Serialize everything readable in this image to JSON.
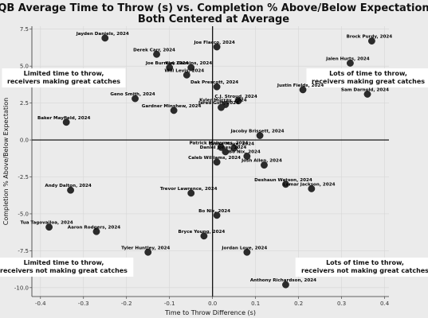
{
  "chart_data": {
    "type": "scatter",
    "title": "QB Average Time to Throw (s) vs. Completion % Above/Below Expectation",
    "subtitle": "Both Centered at Average",
    "xlabel": "Time to Throw Difference (s)",
    "ylabel": "Completion % Above/Below Expectation",
    "xlim": [
      -0.42,
      0.41
    ],
    "ylim": [
      -10.6,
      7.7
    ],
    "x_ticks": [
      -0.4,
      -0.3,
      -0.2,
      -0.1,
      0.0,
      0.1,
      0.2,
      0.3,
      0.4
    ],
    "y_ticks": [
      -10.0,
      -7.5,
      -5.0,
      -2.5,
      0.0,
      2.5,
      5.0,
      7.5
    ],
    "grid": true,
    "reference_lines": {
      "x": 0,
      "y": 0
    },
    "quadrant_labels": [
      {
        "lines": [
          "Limited time to throw,",
          "receivers making great catches"
        ],
        "position": "top-left"
      },
      {
        "lines": [
          "Lots of time to throw,",
          "receivers making great catches"
        ],
        "position": "top-right"
      },
      {
        "lines": [
          "Limited time to throw,",
          "receivers not making great catches"
        ],
        "position": "bottom-left"
      },
      {
        "lines": [
          "Lots of time to throw,",
          "receivers not making great catches"
        ],
        "position": "bottom-right"
      }
    ],
    "points": [
      {
        "label": "Jayden Daniels, 2024",
        "x": -0.25,
        "y": 6.9
      },
      {
        "label": "Joe Flacco, 2024",
        "x": 0.01,
        "y": 6.3
      },
      {
        "label": "Brock Purdy, 2024",
        "x": 0.37,
        "y": 6.7
      },
      {
        "label": "Derek Carr, 2024",
        "x": -0.13,
        "y": 5.8
      },
      {
        "label": "Jalen Hurts, 2024",
        "x": 0.32,
        "y": 5.2
      },
      {
        "label": "Joe Burrow, 2024",
        "x": -0.1,
        "y": 4.9
      },
      {
        "label": "Kirk Cousins, 2024",
        "x": -0.05,
        "y": 4.9
      },
      {
        "label": "Will Levis, 2024",
        "x": -0.06,
        "y": 4.4
      },
      {
        "label": "Dak Prescott, 2024",
        "x": 0.01,
        "y": 3.6
      },
      {
        "label": "Justin Fields, 2024",
        "x": 0.21,
        "y": 3.4
      },
      {
        "label": "Sam Darnold, 2024",
        "x": 0.36,
        "y": 3.1
      },
      {
        "label": "Geno Smith, 2024",
        "x": -0.18,
        "y": 2.8
      },
      {
        "label": "C.J. Stroud, 2024",
        "x": 0.06,
        "y": 2.65
      },
      {
        "label": "Kyler Murray, 2024",
        "x": 0.03,
        "y": 2.4
      },
      {
        "label": "Jared Goff, 2024",
        "x": 0.02,
        "y": 2.2
      },
      {
        "label": "Gardner Minshew, 2024",
        "x": -0.09,
        "y": 2.0
      },
      {
        "label": "Baker Mayfield, 2024",
        "x": -0.34,
        "y": 1.2
      },
      {
        "label": "Jacoby Brissett, 2024",
        "x": 0.11,
        "y": 0.3
      },
      {
        "label": "Patrick Mahomes, 2024",
        "x": 0.02,
        "y": -0.5
      },
      {
        "label": "Drake Maye, 2024",
        "x": 0.05,
        "y": -0.55
      },
      {
        "label": "Daniel Jones, 2024",
        "x": 0.03,
        "y": -0.8
      },
      {
        "label": "Bo Nix, 2024",
        "x": 0.08,
        "y": -1.1
      },
      {
        "label": "Caleb Williams, 2024",
        "x": 0.01,
        "y": -1.5
      },
      {
        "label": "Josh Allen, 2024",
        "x": 0.12,
        "y": -1.7
      },
      {
        "label": "Deshaun Watson, 2024",
        "x": 0.17,
        "y": -3.0
      },
      {
        "label": "Lamar Jackson, 2024",
        "x": 0.23,
        "y": -3.3
      },
      {
        "label": "Andy Dalton, 2024",
        "x": -0.33,
        "y": -3.4
      },
      {
        "label": "Trevor Lawrence, 2024",
        "x": -0.05,
        "y": -3.6
      },
      {
        "label": "Bo Nix, 2024",
        "x": 0.01,
        "y": -5.1
      },
      {
        "label": "Tua Tagovailoa, 2024",
        "x": -0.38,
        "y": -5.9
      },
      {
        "label": "Aaron Rodgers, 2024",
        "x": -0.27,
        "y": -6.2
      },
      {
        "label": "Bryce Young, 2024",
        "x": -0.02,
        "y": -6.5
      },
      {
        "label": "Tyler Huntley, 2024",
        "x": -0.15,
        "y": -7.6
      },
      {
        "label": "Jordan Love, 2024",
        "x": 0.08,
        "y": -7.6
      },
      {
        "label": "Anthony Richardson, 2024",
        "x": 0.17,
        "y": -9.8
      }
    ]
  }
}
